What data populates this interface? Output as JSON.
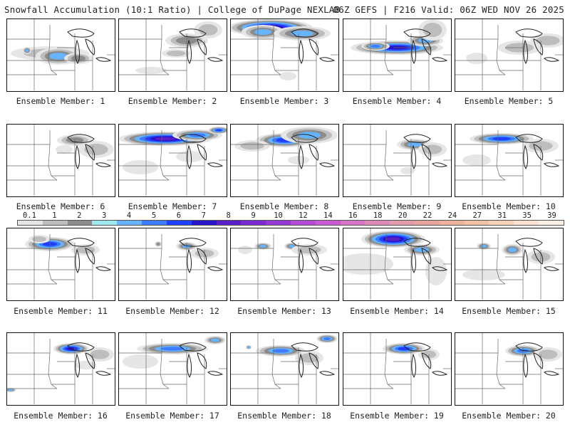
{
  "header": {
    "left": "Snowfall Accumulation (10:1 Ratio) | College of DuPage NEXLAB",
    "right": "06Z GEFS | F216 Valid: 06Z WED NOV 26 2025"
  },
  "colors": {
    "map_lines": "#6a6a6a",
    "lake_lines": "#222222",
    "panel_border": "#111111"
  },
  "legend": {
    "ticks": [
      "0.1",
      "1",
      "2",
      "3",
      "4",
      "5",
      "6",
      "7",
      "8",
      "9",
      "10",
      "12",
      "14",
      "16",
      "18",
      "20",
      "22",
      "24",
      "27",
      "31",
      "35",
      "39"
    ],
    "colors": [
      "#e6e6e6",
      "#bdbdbd",
      "#8c8c8c",
      "#9fe8f0",
      "#66b3ff",
      "#3d7cff",
      "#1f3fff",
      "#2a14c8",
      "#5a1fc7",
      "#7b2ad2",
      "#9438d6",
      "#b44bd6",
      "#c85bd4",
      "#d774c6",
      "#de8ab9",
      "#e29caa",
      "#e8a59d",
      "#eeb39c",
      "#f2c2a7",
      "#f7d2bb",
      "#fbe2d2",
      "#fdf0e6"
    ]
  },
  "panels": [
    {
      "label": "Ensemble Member: 1",
      "snow": [
        [
          60,
          48,
          55,
          10,
          2
        ],
        [
          72,
          52,
          32,
          12,
          4
        ],
        [
          100,
          55,
          20,
          8,
          3
        ],
        [
          28,
          44,
          6,
          5,
          4
        ]
      ]
    },
    {
      "label": "Ensemble Member: 2",
      "snow": [
        [
          95,
          30,
          30,
          10,
          3
        ],
        [
          80,
          48,
          20,
          6,
          2
        ],
        [
          45,
          72,
          22,
          5,
          1
        ],
        [
          125,
          15,
          20,
          12,
          2
        ]
      ]
    },
    {
      "label": "Ensemble Member: 3",
      "snow": [
        [
          55,
          12,
          60,
          12,
          8
        ],
        [
          45,
          18,
          30,
          10,
          4
        ],
        [
          100,
          20,
          40,
          10,
          4
        ],
        [
          80,
          80,
          12,
          6,
          1
        ]
      ]
    },
    {
      "label": "Ensemble Member: 4",
      "snow": [
        [
          75,
          40,
          65,
          10,
          7
        ],
        [
          45,
          38,
          20,
          6,
          5
        ],
        [
          115,
          30,
          25,
          8,
          4
        ],
        [
          125,
          15,
          20,
          15,
          2
        ]
      ]
    },
    {
      "label": "Ensemble Member: 5",
      "snow": [
        [
          90,
          40,
          30,
          10,
          2
        ],
        [
          130,
          30,
          25,
          10,
          2
        ],
        [
          30,
          55,
          15,
          8,
          1
        ]
      ]
    },
    {
      "label": "Ensemble Member: 6",
      "snow": [
        [
          95,
          22,
          25,
          8,
          3
        ],
        [
          125,
          35,
          25,
          12,
          2
        ],
        [
          80,
          35,
          12,
          6,
          1
        ]
      ]
    },
    {
      "label": "Ensemble Member: 7",
      "snow": [
        [
          65,
          20,
          65,
          10,
          8
        ],
        [
          110,
          15,
          35,
          8,
          5
        ],
        [
          140,
          8,
          15,
          5,
          6
        ],
        [
          30,
          60,
          25,
          10,
          1
        ],
        [
          100,
          45,
          20,
          8,
          1
        ]
      ]
    },
    {
      "label": "Ensemble Member: 8",
      "snow": [
        [
          75,
          22,
          40,
          10,
          6
        ],
        [
          110,
          15,
          40,
          12,
          4
        ],
        [
          30,
          30,
          25,
          8,
          2
        ],
        [
          95,
          50,
          15,
          6,
          1
        ]
      ]
    },
    {
      "label": "Ensemble Member: 9",
      "snow": [
        [
          100,
          28,
          25,
          8,
          4
        ],
        [
          125,
          35,
          20,
          10,
          2
        ],
        [
          90,
          65,
          10,
          5,
          1
        ]
      ]
    },
    {
      "label": "Ensemble Member: 10",
      "snow": [
        [
          65,
          20,
          45,
          8,
          6
        ],
        [
          120,
          30,
          25,
          10,
          2
        ],
        [
          30,
          50,
          20,
          8,
          1
        ]
      ]
    },
    {
      "label": "Ensemble Member: 11",
      "snow": [
        [
          60,
          22,
          35,
          10,
          6
        ],
        [
          45,
          15,
          15,
          6,
          2
        ],
        [
          110,
          30,
          20,
          8,
          2
        ]
      ]
    },
    {
      "label": "Ensemble Member: 12",
      "snow": [
        [
          95,
          25,
          15,
          6,
          4
        ],
        [
          120,
          35,
          20,
          8,
          2
        ],
        [
          55,
          22,
          5,
          4,
          3
        ]
      ]
    },
    {
      "label": "Ensemble Member: 13",
      "snow": [
        [
          45,
          25,
          12,
          5,
          4
        ],
        [
          85,
          25,
          10,
          5,
          4
        ],
        [
          110,
          30,
          25,
          8,
          2
        ],
        [
          20,
          30,
          10,
          6,
          1
        ]
      ]
    },
    {
      "label": "Ensemble Member: 14",
      "snow": [
        [
          70,
          15,
          45,
          12,
          8
        ],
        [
          110,
          30,
          25,
          8,
          4
        ],
        [
          30,
          50,
          40,
          15,
          1
        ],
        [
          130,
          60,
          15,
          20,
          1
        ]
      ]
    },
    {
      "label": "Ensemble Member: 15",
      "snow": [
        [
          40,
          25,
          10,
          5,
          4
        ],
        [
          80,
          30,
          15,
          8,
          4
        ],
        [
          120,
          40,
          20,
          10,
          2
        ],
        [
          40,
          65,
          30,
          8,
          1
        ]
      ]
    },
    {
      "label": "Ensemble Member: 16",
      "snow": [
        [
          90,
          22,
          25,
          8,
          7
        ],
        [
          130,
          30,
          20,
          10,
          2
        ],
        [
          5,
          80,
          8,
          3,
          4
        ],
        [
          110,
          45,
          15,
          6,
          1
        ]
      ]
    },
    {
      "label": "Ensemble Member: 17",
      "snow": [
        [
          75,
          22,
          50,
          8,
          5
        ],
        [
          135,
          10,
          15,
          6,
          4
        ],
        [
          30,
          40,
          25,
          10,
          1
        ]
      ]
    },
    {
      "label": "Ensemble Member: 18",
      "snow": [
        [
          70,
          25,
          35,
          8,
          5
        ],
        [
          135,
          8,
          15,
          6,
          5
        ],
        [
          110,
          35,
          20,
          10,
          2
        ],
        [
          25,
          20,
          4,
          3,
          4
        ]
      ]
    },
    {
      "label": "Ensemble Member: 19",
      "snow": [
        [
          85,
          22,
          30,
          8,
          6
        ],
        [
          120,
          30,
          15,
          8,
          2
        ]
      ]
    },
    {
      "label": "Ensemble Member: 20",
      "snow": [
        [
          95,
          25,
          25,
          8,
          5
        ],
        [
          130,
          30,
          20,
          10,
          2
        ]
      ]
    }
  ]
}
